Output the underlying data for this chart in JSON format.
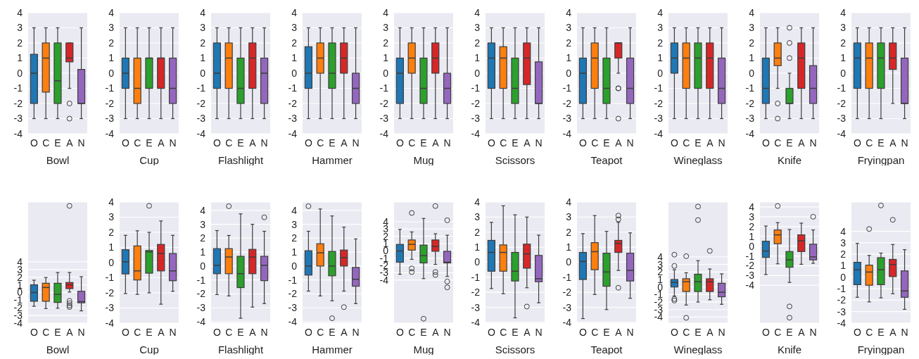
{
  "chart_data": [
    {
      "type": "box",
      "xlabel": "Bowl",
      "categories": [
        "O",
        "C",
        "E",
        "A",
        "N"
      ],
      "colors": [
        "#1f77b4",
        "#ff7f0e",
        "#2ca02c",
        "#d62728",
        "#9467bd"
      ],
      "ylim": [
        -4,
        4
      ],
      "yticks": [
        -4,
        -3,
        -2,
        -1,
        0,
        1,
        2,
        3,
        4
      ],
      "grid": "y",
      "boxes": [
        {
          "low": -3,
          "q1": -2,
          "median": 0,
          "q3": 1.25,
          "high": 3
        },
        {
          "low": -3,
          "q1": -1.25,
          "median": 1,
          "q3": 2,
          "high": 3
        },
        {
          "low": -3,
          "q1": -2,
          "median": -0.5,
          "q3": 2,
          "high": 3
        },
        {
          "low": -1,
          "q1": 0.75,
          "median": 1,
          "q3": 2,
          "high": 2,
          "outliers": [
            -2,
            -3
          ]
        },
        {
          "low": -3,
          "q1": -2,
          "median": -2,
          "q3": 0.25,
          "high": 3
        }
      ]
    },
    {
      "type": "box",
      "xlabel": "Cup",
      "categories": [
        "O",
        "C",
        "E",
        "A",
        "N"
      ],
      "colors": [
        "#1f77b4",
        "#ff7f0e",
        "#2ca02c",
        "#d62728",
        "#9467bd"
      ],
      "ylim": [
        -4,
        4
      ],
      "yticks": [
        -4,
        -3,
        -2,
        -1,
        0,
        1,
        2,
        3,
        4
      ],
      "grid": "y",
      "boxes": [
        {
          "low": -3,
          "q1": -1,
          "median": 0,
          "q3": 1,
          "high": 3
        },
        {
          "low": -3,
          "q1": -2,
          "median": -1,
          "q3": 1,
          "high": 3
        },
        {
          "low": -3,
          "q1": -1,
          "median": 1,
          "q3": 1,
          "high": 3
        },
        {
          "low": -3,
          "q1": -1,
          "median": 1,
          "q3": 1,
          "high": 3
        },
        {
          "low": -3,
          "q1": -2,
          "median": -1,
          "q3": 1,
          "high": 3
        }
      ]
    },
    {
      "type": "box",
      "xlabel": "Flashlight",
      "categories": [
        "O",
        "C",
        "E",
        "A",
        "N"
      ],
      "colors": [
        "#1f77b4",
        "#ff7f0e",
        "#2ca02c",
        "#d62728",
        "#9467bd"
      ],
      "ylim": [
        -4,
        4
      ],
      "yticks": [
        -4,
        -3,
        -2,
        -1,
        0,
        1,
        2,
        3,
        4
      ],
      "grid": "y",
      "boxes": [
        {
          "low": -3,
          "q1": -1,
          "median": 0,
          "q3": 2,
          "high": 3
        },
        {
          "low": -3,
          "q1": -1,
          "median": 1,
          "q3": 2,
          "high": 3
        },
        {
          "low": -3,
          "q1": -2,
          "median": -1,
          "q3": 1,
          "high": 3
        },
        {
          "low": -3,
          "q1": -1,
          "median": 1,
          "q3": 2,
          "high": 3
        },
        {
          "low": -3,
          "q1": -2,
          "median": 0,
          "q3": 1,
          "high": 3
        }
      ]
    },
    {
      "type": "box",
      "xlabel": "Hammer",
      "categories": [
        "O",
        "C",
        "E",
        "A",
        "N"
      ],
      "colors": [
        "#1f77b4",
        "#ff7f0e",
        "#2ca02c",
        "#d62728",
        "#9467bd"
      ],
      "ylim": [
        -4,
        4
      ],
      "yticks": [
        -4,
        -3,
        -2,
        -1,
        0,
        1,
        2,
        3,
        4
      ],
      "grid": "y",
      "boxes": [
        {
          "low": -3,
          "q1": -1,
          "median": 0,
          "q3": 1.75,
          "high": 3
        },
        {
          "low": -3,
          "q1": 0,
          "median": 1,
          "q3": 2,
          "high": 3
        },
        {
          "low": -3,
          "q1": -1,
          "median": 0,
          "q3": 2,
          "high": 3
        },
        {
          "low": -3,
          "q1": 0,
          "median": 1,
          "q3": 2,
          "high": 3
        },
        {
          "low": -3,
          "q1": -2,
          "median": -1,
          "q3": 0,
          "high": 3
        }
      ]
    },
    {
      "type": "box",
      "xlabel": "Mug",
      "categories": [
        "O",
        "C",
        "E",
        "A",
        "N"
      ],
      "colors": [
        "#1f77b4",
        "#ff7f0e",
        "#2ca02c",
        "#d62728",
        "#9467bd"
      ],
      "ylim": [
        -4,
        4
      ],
      "yticks": [
        -4,
        -3,
        -2,
        -1,
        0,
        1,
        2,
        3,
        4
      ],
      "grid": "y",
      "boxes": [
        {
          "low": -3,
          "q1": -2,
          "median": 0,
          "q3": 1,
          "high": 3
        },
        {
          "low": -3,
          "q1": 0,
          "median": 1,
          "q3": 2,
          "high": 3
        },
        {
          "low": -3,
          "q1": -2,
          "median": -1,
          "q3": 1,
          "high": 3
        },
        {
          "low": -3,
          "q1": 0,
          "median": 1,
          "q3": 2,
          "high": 3
        },
        {
          "low": -3,
          "q1": -2,
          "median": -1,
          "q3": 0,
          "high": 3
        }
      ]
    },
    {
      "type": "box",
      "xlabel": "Scissors",
      "categories": [
        "O",
        "C",
        "E",
        "A",
        "N"
      ],
      "colors": [
        "#1f77b4",
        "#ff7f0e",
        "#2ca02c",
        "#d62728",
        "#9467bd"
      ],
      "ylim": [
        -4,
        4
      ],
      "yticks": [
        -4,
        -3,
        -2,
        -1,
        0,
        1,
        2,
        3,
        4
      ],
      "grid": "y",
      "boxes": [
        {
          "low": -3,
          "q1": -1,
          "median": 1,
          "q3": 2,
          "high": 3
        },
        {
          "low": -3,
          "q1": -1,
          "median": 1,
          "q3": 1.75,
          "high": 3
        },
        {
          "low": -3,
          "q1": -2,
          "median": -1,
          "q3": 1,
          "high": 3
        },
        {
          "low": -3,
          "q1": -0.75,
          "median": 1,
          "q3": 2,
          "high": 3
        },
        {
          "low": -3,
          "q1": -2,
          "median": -2,
          "q3": 0.75,
          "high": 3
        }
      ]
    },
    {
      "type": "box",
      "xlabel": "Teapot",
      "categories": [
        "O",
        "C",
        "E",
        "A",
        "N"
      ],
      "colors": [
        "#1f77b4",
        "#ff7f0e",
        "#2ca02c",
        "#d62728",
        "#9467bd"
      ],
      "ylim": [
        -4,
        4
      ],
      "yticks": [
        -4,
        -3,
        -2,
        -1,
        0,
        1,
        2,
        3,
        4
      ],
      "grid": "y",
      "boxes": [
        {
          "low": -3,
          "q1": -2,
          "median": 0,
          "q3": 1,
          "high": 3
        },
        {
          "low": -3,
          "q1": -1,
          "median": 1,
          "q3": 2,
          "high": 3
        },
        {
          "low": -3,
          "q1": -2,
          "median": -1,
          "q3": 1,
          "high": 3
        },
        {
          "low": 0,
          "q1": 1,
          "median": 2,
          "q3": 2,
          "high": 2,
          "outliers": [
            -1,
            -1,
            -3
          ]
        },
        {
          "low": -3,
          "q1": -2,
          "median": -1,
          "q3": 1,
          "high": 3
        }
      ]
    },
    {
      "type": "box",
      "xlabel": "Wineglass",
      "categories": [
        "O",
        "C",
        "E",
        "A",
        "N"
      ],
      "colors": [
        "#1f77b4",
        "#ff7f0e",
        "#2ca02c",
        "#d62728",
        "#9467bd"
      ],
      "ylim": [
        -4,
        4
      ],
      "yticks": [
        -4,
        -3,
        -2,
        -1,
        0,
        1,
        2,
        3,
        4
      ],
      "grid": "y",
      "boxes": [
        {
          "low": -3,
          "q1": 0,
          "median": 1,
          "q3": 2,
          "high": 3
        },
        {
          "low": -3,
          "q1": -1,
          "median": 1,
          "q3": 2,
          "high": 3
        },
        {
          "low": -3,
          "q1": -1,
          "median": 1,
          "q3": 2,
          "high": 3
        },
        {
          "low": -3,
          "q1": -1,
          "median": 1,
          "q3": 2,
          "high": 3
        },
        {
          "low": -3,
          "q1": -2,
          "median": -1,
          "q3": 1,
          "high": 3
        }
      ]
    },
    {
      "type": "box",
      "xlabel": "Knife",
      "categories": [
        "O",
        "C",
        "E",
        "A",
        "N"
      ],
      "colors": [
        "#1f77b4",
        "#ff7f0e",
        "#2ca02c",
        "#d62728",
        "#9467bd"
      ],
      "ylim": [
        -4,
        4
      ],
      "yticks": [
        -4,
        -3,
        -2,
        -1,
        0,
        1,
        2,
        3,
        4
      ],
      "grid": "y",
      "boxes": [
        {
          "low": -3,
          "q1": -2,
          "median": -1,
          "q3": 1,
          "high": 3
        },
        {
          "low": -1,
          "q1": 0.5,
          "median": 1,
          "q3": 2,
          "high": 3,
          "outliers": [
            -2,
            -3
          ]
        },
        {
          "low": -3,
          "q1": -2,
          "median": -2,
          "q3": -1,
          "high": 0,
          "outliers": [
            1,
            2,
            3
          ]
        },
        {
          "low": -3,
          "q1": -1,
          "median": 1,
          "q3": 2,
          "high": 3
        },
        {
          "low": -3,
          "q1": -2,
          "median": -1,
          "q3": 0.5,
          "high": 3
        }
      ]
    },
    {
      "type": "box",
      "xlabel": "Fryingpan",
      "categories": [
        "O",
        "C",
        "E",
        "A",
        "N"
      ],
      "colors": [
        "#1f77b4",
        "#ff7f0e",
        "#2ca02c",
        "#d62728",
        "#9467bd"
      ],
      "ylim": [
        -4,
        4
      ],
      "yticks": [
        -4,
        -3,
        -2,
        -1,
        0,
        1,
        2,
        3,
        4
      ],
      "grid": "y",
      "boxes": [
        {
          "low": -3,
          "q1": -1,
          "median": 1,
          "q3": 2,
          "high": 3
        },
        {
          "low": -3,
          "q1": -1,
          "median": 1,
          "q3": 2,
          "high": 3
        },
        {
          "low": -3,
          "q1": -1,
          "median": 1,
          "q3": 2,
          "high": 3
        },
        {
          "low": -2,
          "q1": 0.25,
          "median": 1,
          "q3": 2,
          "high": 3
        },
        {
          "low": -3,
          "q1": -2,
          "median": -2,
          "q3": 1,
          "high": 3
        }
      ]
    },
    {
      "type": "box",
      "xlabel": "Bowl",
      "categories": [
        "O",
        "C",
        "E",
        "A",
        "N"
      ],
      "colors": [
        "#1f77b4",
        "#ff7f0e",
        "#2ca02c",
        "#d62728",
        "#9467bd"
      ],
      "ylim": [
        -4,
        11.8
      ],
      "yticks": [
        -4,
        -3,
        -2,
        -1,
        0,
        1,
        2,
        3,
        4
      ],
      "grid": "y",
      "boxes": [
        {
          "low": -1.8,
          "q1": -1.15,
          "median": 0,
          "q3": 1,
          "high": 1.6
        },
        {
          "low": -2.1,
          "q1": -1.15,
          "median": 0.65,
          "q3": 1.2,
          "high": 1.95
        },
        {
          "low": -2.05,
          "q1": -1.3,
          "median": -0.25,
          "q3": 1.2,
          "high": 2.6
        },
        {
          "low": 0.05,
          "q1": 0.5,
          "median": 1,
          "q3": 1.3,
          "high": 2.6,
          "outliers": [
            11.3,
            -1.1,
            -1.4,
            -1.7,
            -1.9
          ]
        },
        {
          "low": -2.4,
          "q1": -1.35,
          "median": -1.2,
          "q3": 0.15,
          "high": 2.05
        }
      ]
    },
    {
      "type": "box",
      "xlabel": "Cup",
      "categories": [
        "O",
        "C",
        "E",
        "A",
        "N"
      ],
      "colors": [
        "#1f77b4",
        "#ff7f0e",
        "#2ca02c",
        "#d62728",
        "#9467bd"
      ],
      "ylim": [
        -4,
        4
      ],
      "yticks": [
        -4,
        -3,
        -2,
        -1,
        0,
        1,
        2,
        3,
        4
      ],
      "grid": "y",
      "boxes": [
        {
          "low": -2.05,
          "q1": -0.75,
          "median": 0.05,
          "q3": 0.85,
          "high": 1.8
        },
        {
          "low": -2.1,
          "q1": -1.15,
          "median": -0.55,
          "q3": 1.1,
          "high": 2.1
        },
        {
          "low": -2,
          "q1": -0.7,
          "median": 0.7,
          "q3": 0.8,
          "high": 2,
          "outliers": [
            3.75
          ]
        },
        {
          "low": -2.75,
          "q1": -0.55,
          "median": 0.6,
          "q3": 1.2,
          "high": 2.75
        },
        {
          "low": -1.9,
          "q1": -1.2,
          "median": -0.55,
          "q3": 0.6,
          "high": 1.8
        }
      ]
    },
    {
      "type": "box",
      "xlabel": "Flashlight",
      "categories": [
        "O",
        "C",
        "E",
        "A",
        "N"
      ],
      "colors": [
        "#1f77b4",
        "#ff7f0e",
        "#2ca02c",
        "#d62728",
        "#9467bd"
      ],
      "ylim": [
        -4.1,
        4.6
      ],
      "yticks": [
        -4,
        -3,
        -2,
        -1,
        0,
        1,
        2,
        3,
        4
      ],
      "grid": "y",
      "boxes": [
        {
          "low": -2.05,
          "q1": -0.55,
          "median": 0.05,
          "q3": 1.25,
          "high": 2.55
        },
        {
          "low": -2.15,
          "q1": -0.55,
          "median": 0.65,
          "q3": 1.25,
          "high": 2.2,
          "outliers": [
            4.3
          ]
        },
        {
          "low": -3.75,
          "q1": -1.55,
          "median": -0.55,
          "q3": 0.7,
          "high": 3.75
        },
        {
          "low": -2.95,
          "q1": -0.55,
          "median": 0.65,
          "q3": 1.2,
          "high": 3
        },
        {
          "low": -2.7,
          "q1": -1.05,
          "median": 0.05,
          "q3": 0.7,
          "high": 2.5,
          "outliers": [
            3.5
          ]
        }
      ]
    },
    {
      "type": "box",
      "xlabel": "Hammer",
      "categories": [
        "O",
        "C",
        "E",
        "A",
        "N"
      ],
      "colors": [
        "#1f77b4",
        "#ff7f0e",
        "#2ca02c",
        "#d62728",
        "#9467bd"
      ],
      "ylim": [
        -4.1,
        4.6
      ],
      "yticks": [
        -4,
        -3,
        -2,
        -1,
        0,
        1,
        2,
        3,
        4
      ],
      "grid": "y",
      "boxes": [
        {
          "low": -1.8,
          "q1": -0.65,
          "median": 0,
          "q3": 1.1,
          "high": 2.5,
          "outliers": [
            4.3
          ]
        },
        {
          "low": -2.15,
          "q1": 0,
          "median": 0.95,
          "q3": 1.6,
          "high": 4.1
        },
        {
          "low": -2.5,
          "q1": -0.7,
          "median": 0,
          "q3": 1.05,
          "high": 3.6,
          "outliers": [
            -3.75
          ]
        },
        {
          "low": -1.8,
          "q1": 0,
          "median": 0.6,
          "q3": 1.15,
          "high": 2.8,
          "outliers": [
            -2.95
          ]
        },
        {
          "low": -2.7,
          "q1": -1.45,
          "median": -0.95,
          "q3": -0.1,
          "high": 1.95
        }
      ]
    },
    {
      "type": "box",
      "xlabel": "Mug",
      "categories": [
        "O",
        "C",
        "E",
        "A",
        "N"
      ],
      "colors": [
        "#1f77b4",
        "#ff7f0e",
        "#2ca02c",
        "#d62728",
        "#9467bd"
      ],
      "ylim": [
        -9.9,
        6.7
      ],
      "yticks": [
        -4,
        -3,
        -2,
        -1,
        0,
        1,
        2,
        3,
        4
      ],
      "grid": "y",
      "boxes": [
        {
          "low": -3.2,
          "q1": -1.55,
          "median": 0,
          "q3": 0.9,
          "high": 2.95
        },
        {
          "low": -1.15,
          "q1": 0.1,
          "median": 0.9,
          "q3": 1.5,
          "high": 2.6,
          "outliers": [
            5.2,
            -2.4,
            -2.9
          ]
        },
        {
          "low": -3.8,
          "q1": -1.65,
          "median": -0.65,
          "q3": 0.8,
          "high": 4.45,
          "outliers": [
            -9.3
          ]
        },
        {
          "low": -1.85,
          "q1": -0.05,
          "median": 0.6,
          "q3": 1.5,
          "high": 2.35,
          "outliers": [
            6.15,
            -2.9,
            -3.3
          ]
        },
        {
          "low": -3.5,
          "q1": -1.65,
          "median": -1.55,
          "q3": -0.05,
          "high": 2.15,
          "outliers": [
            4.2,
            -4.2,
            -5
          ]
        }
      ]
    },
    {
      "type": "box",
      "xlabel": "Scissors",
      "categories": [
        "O",
        "C",
        "E",
        "A",
        "N"
      ],
      "colors": [
        "#1f77b4",
        "#ff7f0e",
        "#2ca02c",
        "#d62728",
        "#9467bd"
      ],
      "ylim": [
        -4.05,
        4
      ],
      "yticks": [
        -4,
        -3,
        -2,
        -1,
        0,
        1,
        2,
        3,
        4
      ],
      "grid": "y",
      "boxes": [
        {
          "low": -1.75,
          "q1": -0.6,
          "median": 0.65,
          "q3": 1.45,
          "high": 2.65
        },
        {
          "low": -2.1,
          "q1": -0.6,
          "median": 0.65,
          "q3": 1.15,
          "high": 3.75
        },
        {
          "low": -3.7,
          "q1": -1.25,
          "median": -0.6,
          "q3": 0.65,
          "high": 3.15
        },
        {
          "low": -1.7,
          "q1": -0.4,
          "median": 0.55,
          "q3": 1.2,
          "high": 3,
          "outliers": [
            -2.95
          ]
        },
        {
          "low": -2.7,
          "q1": -1.3,
          "median": -1.1,
          "q3": 0.45,
          "high": 1.8
        }
      ]
    },
    {
      "type": "box",
      "xlabel": "Teapot",
      "categories": [
        "O",
        "C",
        "E",
        "A",
        "N"
      ],
      "colors": [
        "#1f77b4",
        "#ff7f0e",
        "#2ca02c",
        "#d62728",
        "#9467bd"
      ],
      "ylim": [
        -4.05,
        4
      ],
      "yticks": [
        -4,
        -3,
        -2,
        -1,
        0,
        1,
        2,
        3,
        4
      ],
      "grid": "y",
      "boxes": [
        {
          "low": -3.75,
          "q1": -1.15,
          "median": 0.05,
          "q3": 0.65,
          "high": 1.9
        },
        {
          "low": -2.15,
          "q1": -0.5,
          "median": 0.7,
          "q3": 1.3,
          "high": 3.1
        },
        {
          "low": -3.15,
          "q1": -1.6,
          "median": -0.65,
          "q3": 0.6,
          "high": 2.05
        },
        {
          "low": -0.55,
          "q1": 0.65,
          "median": 1.25,
          "q3": 1.45,
          "high": 2.65,
          "outliers": [
            3.1,
            2.85,
            -1.7
          ]
        },
        {
          "low": -2.4,
          "q1": -1.25,
          "median": -0.55,
          "q3": 0.6,
          "high": 1.95
        }
      ]
    },
    {
      "type": "box",
      "xlabel": "Wineglass",
      "categories": [
        "O",
        "C",
        "E",
        "A",
        "N"
      ],
      "colors": [
        "#1f77b4",
        "#ff7f0e",
        "#2ca02c",
        "#d62728",
        "#9467bd"
      ],
      "ylim": [
        -4.8,
        11.3
      ],
      "yticks": [
        -4,
        -3,
        -2,
        -1,
        0,
        1,
        2,
        3,
        4
      ],
      "grid": "y",
      "boxes": [
        {
          "low": -1.2,
          "q1": 0,
          "median": 0.6,
          "q3": 1,
          "high": 2.3,
          "outliers": [
            4.3,
            2.8,
            -1.6,
            -1.8
          ]
        },
        {
          "low": -2.4,
          "q1": -0.6,
          "median": 0.7,
          "q3": 1.1,
          "high": 1.9,
          "outliers": [
            4.1,
            -4.1
          ]
        },
        {
          "low": -2,
          "q1": -0.6,
          "median": 0.7,
          "q3": 1.7,
          "high": 3.5,
          "outliers": [
            10.7,
            8.9
          ]
        },
        {
          "low": -1.7,
          "q1": -0.6,
          "median": 0.7,
          "q3": 1.1,
          "high": 2.4,
          "outliers": [
            4.8
          ]
        },
        {
          "low": -2.3,
          "q1": -1.3,
          "median": -0.7,
          "q3": 0.5,
          "high": 1.75
        }
      ]
    },
    {
      "type": "box",
      "xlabel": "Knife",
      "categories": [
        "O",
        "C",
        "E",
        "A",
        "N"
      ],
      "colors": [
        "#1f77b4",
        "#ff7f0e",
        "#2ca02c",
        "#d62728",
        "#9467bd"
      ],
      "ylim": [
        -7.85,
        4.5
      ],
      "yticks": [
        -4,
        -3,
        -2,
        -1,
        0,
        1,
        2,
        3,
        4
      ],
      "grid": "y",
      "boxes": [
        {
          "low": -2.9,
          "q1": -1.15,
          "median": -0.5,
          "q3": 0.5,
          "high": 2.05
        },
        {
          "low": -1.8,
          "q1": 0.25,
          "median": 1.15,
          "q3": 1.65,
          "high": 2.4,
          "outliers": [
            4.1
          ]
        },
        {
          "low": -3.7,
          "q1": -2.15,
          "median": -1.4,
          "q3": -0.55,
          "high": 1.7,
          "outliers": [
            -6.15,
            -7.3
          ]
        },
        {
          "low": -1.85,
          "q1": -0.55,
          "median": 0.55,
          "q3": 1.15,
          "high": 2.35
        },
        {
          "low": -1.75,
          "q1": -1.4,
          "median": -1.1,
          "q3": 0.2,
          "high": 1.65,
          "outliers": [
            3
          ]
        }
      ]
    },
    {
      "type": "box",
      "xlabel": "Fryingpan",
      "categories": [
        "O",
        "C",
        "E",
        "A",
        "N"
      ],
      "colors": [
        "#1f77b4",
        "#ff7f0e",
        "#2ca02c",
        "#d62728",
        "#9467bd"
      ],
      "ylim": [
        -4,
        6.55
      ],
      "yticks": [
        -4,
        -3,
        -2,
        -1,
        0,
        1,
        2,
        3,
        4
      ],
      "grid": "y",
      "boxes": [
        {
          "low": -1.75,
          "q1": -0.65,
          "median": 0.65,
          "q3": 1.3,
          "high": 2.95
        },
        {
          "low": -2.15,
          "q1": -0.7,
          "median": 0.45,
          "q3": 1.05,
          "high": 1.9,
          "outliers": [
            4.2
          ]
        },
        {
          "low": -1.8,
          "q1": -0.65,
          "median": 0.65,
          "q3": 1.7,
          "high": 2.1,
          "outliers": [
            6.25
          ]
        },
        {
          "low": -1.45,
          "q1": 0.05,
          "median": 1.1,
          "q3": 1.55,
          "high": 2.85,
          "outliers": [
            5
          ]
        },
        {
          "low": -2.8,
          "q1": -1.75,
          "median": -1.2,
          "q3": 0.55,
          "high": 2.4
        }
      ]
    }
  ]
}
